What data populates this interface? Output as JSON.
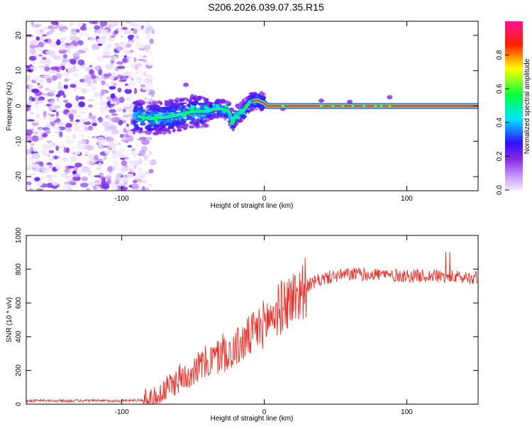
{
  "title": "S206.2026.039.07.35.R15",
  "chart_data": [
    {
      "type": "heatmap",
      "xlabel": "Height of straight line (km)",
      "ylabel": "Frequency (Hz)",
      "xlim": [
        -167,
        150
      ],
      "ylim": [
        -24,
        24
      ],
      "xticks": [
        -100,
        0,
        100
      ],
      "yticks": [
        -20,
        -10,
        0,
        10,
        20
      ],
      "ridge": {
        "x": [
          -88,
          -80,
          -70,
          -60,
          -50,
          -40,
          -35,
          -30,
          -25,
          -22,
          -20,
          -15,
          -10,
          -5,
          0,
          2,
          150
        ],
        "y": [
          -3,
          -3.5,
          -3.2,
          -2.5,
          -1.5,
          -1.5,
          -0.8,
          -0.8,
          -1.5,
          -4.5,
          -2.5,
          -1.5,
          1.2,
          1.6,
          0.8,
          0,
          0
        ]
      },
      "colorbar": {
        "label": "Normalized spectral amplitude",
        "ticks": [
          "0.0",
          "0.2",
          "0.4",
          "0.6",
          "0.8"
        ],
        "tick_values": [
          0,
          0.2,
          0.4,
          0.6,
          0.8
        ],
        "range": [
          0,
          1
        ],
        "colormap": [
          "#ffffff",
          "#e6d6ff",
          "#8a2be2",
          "#3010ff",
          "#00e5ff",
          "#00ff40",
          "#ffff00",
          "#ff0000",
          "#ff1493"
        ]
      }
    },
    {
      "type": "line",
      "xlabel": "Height of straight line (km)",
      "ylabel": "SNR (10 * v/v)",
      "xlim": [
        -167,
        150
      ],
      "ylim": [
        0,
        1000
      ],
      "xticks": [
        -100,
        0,
        100
      ],
      "yticks": [
        0,
        200,
        400,
        600,
        800,
        1000
      ],
      "series": [
        {
          "name": "SNR",
          "color": "#e8302a",
          "envelope": {
            "x": [
              -167,
              -100,
              -85,
              -75,
              -70,
              -60,
              -50,
              -40,
              -30,
              -20,
              -10,
              0,
              10,
              20,
              30,
              40,
              50,
              60,
              70,
              80,
              90,
              100,
              110,
              120,
              130,
              140,
              150
            ],
            "y": [
              20,
              20,
              25,
              40,
              80,
              150,
              200,
              250,
              290,
              330,
              400,
              480,
              560,
              630,
              700,
              740,
              760,
              770,
              770,
              770,
              765,
              760,
              760,
              760,
              755,
              750,
              750
            ]
          }
        }
      ]
    }
  ]
}
